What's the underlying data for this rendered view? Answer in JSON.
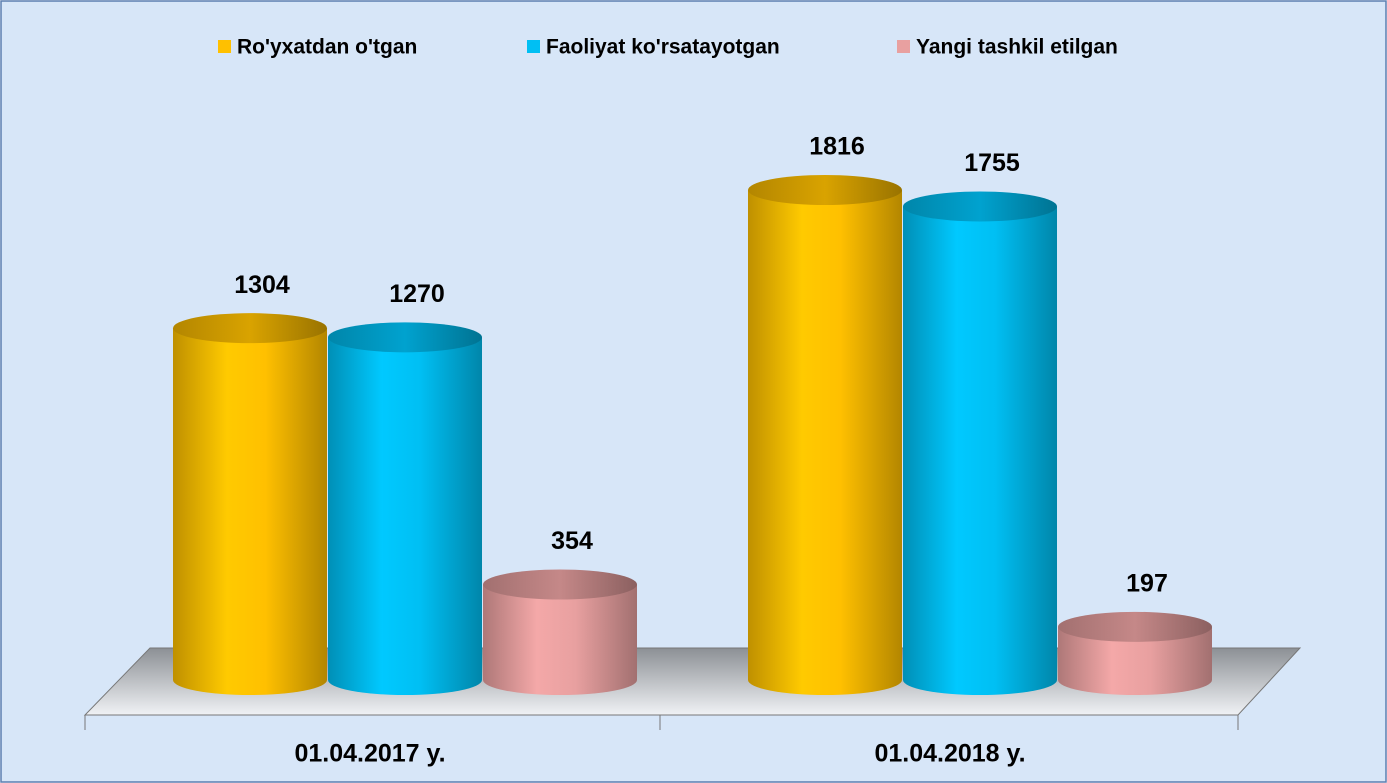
{
  "chart_data": {
    "type": "bar3d",
    "categories": [
      "01.04.2017 y.",
      "01.04.2018 y."
    ],
    "series": [
      {
        "name": "Ro'yxatdan  o'tgan",
        "color": "#ffc000",
        "values": [
          1304,
          1816
        ]
      },
      {
        "name": "Faoliyat ko'rsatayotgan",
        "color": "#00bff3",
        "values": [
          1270,
          1755
        ]
      },
      {
        "name": "Yangi tashkil etilgan",
        "color": "#e8a0a0",
        "values": [
          354,
          197
        ]
      }
    ]
  }
}
